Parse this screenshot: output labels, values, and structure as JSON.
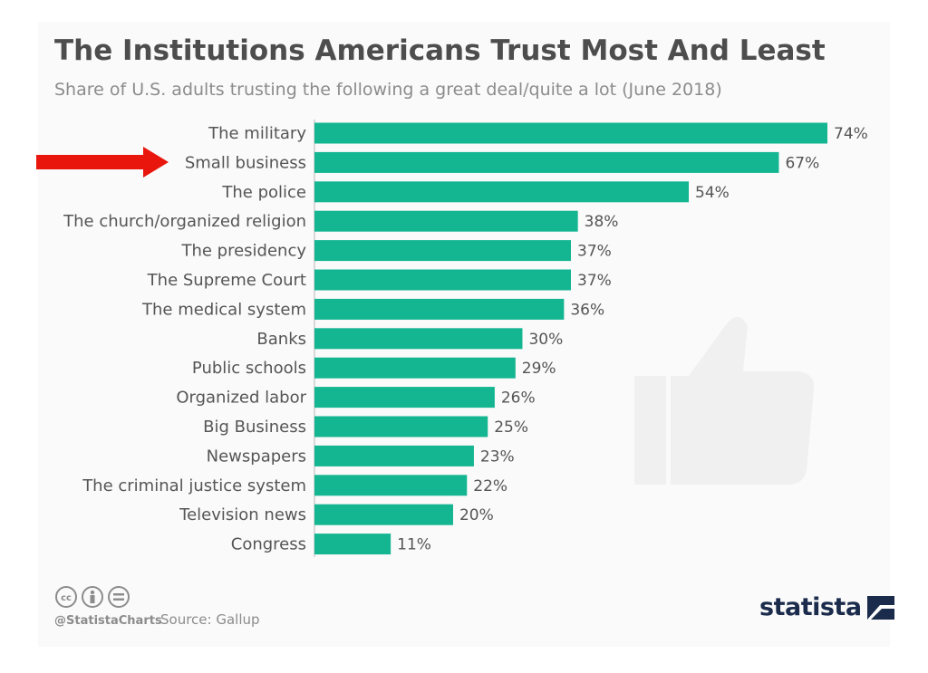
{
  "header": {
    "title": "The Institutions Americans Trust Most And Least",
    "subtitle": "Share of U.S. adults trusting the following a great deal/quite a lot (June 2018)"
  },
  "colors": {
    "bar": "#14b591",
    "arrow": "#e8160c",
    "axis": "#cccccc",
    "text": "#555555"
  },
  "chart_data": {
    "type": "bar",
    "orientation": "horizontal",
    "categories": [
      "The military",
      "Small business",
      "The police",
      "The church/organized religion",
      "The presidency",
      "The Supreme Court",
      "The medical system",
      "Banks",
      "Public schools",
      "Organized labor",
      "Big Business",
      "Newspapers",
      "The criminal justice system",
      "Television news",
      "Congress"
    ],
    "values": [
      74,
      67,
      54,
      38,
      37,
      37,
      36,
      30,
      29,
      26,
      25,
      23,
      22,
      20,
      11
    ],
    "value_labels": [
      "74%",
      "67%",
      "54%",
      "38%",
      "37%",
      "37%",
      "36%",
      "30%",
      "29%",
      "26%",
      "25%",
      "23%",
      "22%",
      "20%",
      "11%"
    ],
    "title": "The Institutions Americans Trust Most And Least",
    "subtitle": "Share of U.S. adults trusting the following a great deal/quite a lot (June 2018)",
    "xlim": [
      0,
      74
    ],
    "grid": false,
    "highlighted_category": "Small business"
  },
  "footer": {
    "handle": "@StatistaCharts",
    "source": "Source: Gallup",
    "license_icons": [
      "cc-icon",
      "by-icon",
      "nd-icon"
    ],
    "logo": "statista"
  }
}
